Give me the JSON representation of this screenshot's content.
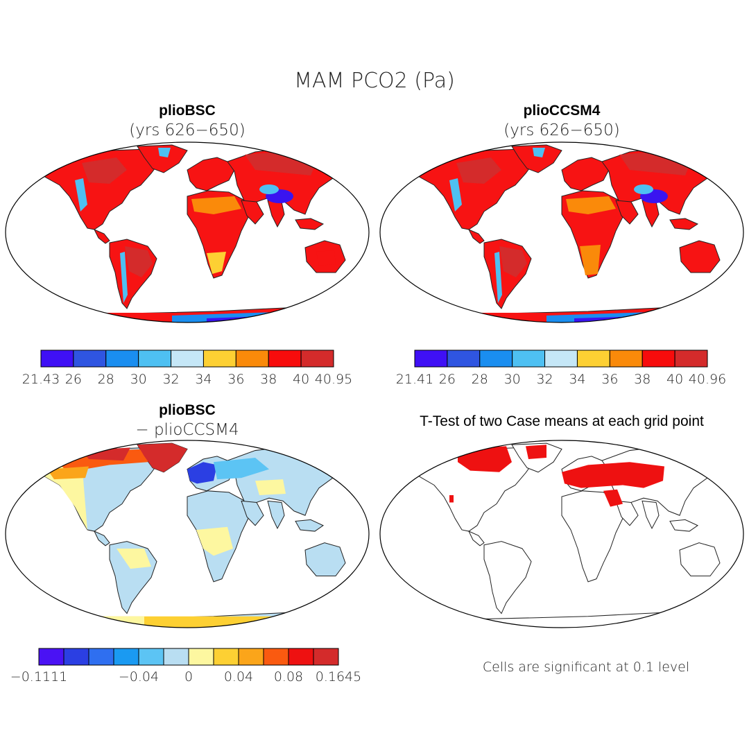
{
  "main_title": "MAM PCO2 (Pa)",
  "panels": [
    {
      "id": "top-left",
      "title": "plioBSC",
      "subtitle": "(yrs 626−650)",
      "colorbar": {
        "colors": [
          "#3f10f5",
          "#2f55e1",
          "#1a8ef0",
          "#4ec0f2",
          "#c5e7f7",
          "#fdd033",
          "#fa8a0a",
          "#f70c0c",
          "#d42b2b"
        ],
        "tick_labels": [
          "21.43",
          "26",
          "28",
          "30",
          "32",
          "34",
          "36",
          "38",
          "40",
          "40.95"
        ]
      }
    },
    {
      "id": "top-right",
      "title": "plioCCSM4",
      "subtitle": "(yrs 626−650)",
      "colorbar": {
        "colors": [
          "#3f10f5",
          "#2f55e1",
          "#1a8ef0",
          "#4ec0f2",
          "#c5e7f7",
          "#fdd033",
          "#fa8a0a",
          "#f70c0c",
          "#d42b2b"
        ],
        "tick_labels": [
          "21.41",
          "26",
          "28",
          "30",
          "32",
          "34",
          "36",
          "38",
          "40",
          "40.96"
        ]
      }
    },
    {
      "id": "bottom-left",
      "title": "plioBSC",
      "subtitle": "− plioCCSM4",
      "colorbar": {
        "colors": [
          "#4a12f4",
          "#2b3fe3",
          "#2f6ff0",
          "#1a9af2",
          "#5cc4f4",
          "#b9def2",
          "#fdf7a0",
          "#fdd033",
          "#fba51a",
          "#fa5a10",
          "#ee1111",
          "#d42b2b"
        ],
        "tick_labels": [
          "−0.1111",
          "−0.04",
          "0",
          "0.04",
          "0.08",
          "0.1645"
        ]
      }
    },
    {
      "id": "bottom-right",
      "title": "T-Test of two Case means at each grid point",
      "subtitle": "",
      "note": "Cells are significant at 0.1 level"
    }
  ],
  "map_fill_colors": {
    "land_top": "#f71313",
    "land_top_dark": "#d42b2b",
    "tibet": "#3a14f0",
    "andes": "#4ec0f2",
    "desert": "#fa8a0a",
    "antarctica_cold": "#3a14f0",
    "diff_pos": "#fdf7a0",
    "diff_neg": "#b9def2",
    "diff_strong_neg": "#2b3fe3",
    "diff_hot": "#fa5a10",
    "significant": "#ee1111"
  }
}
